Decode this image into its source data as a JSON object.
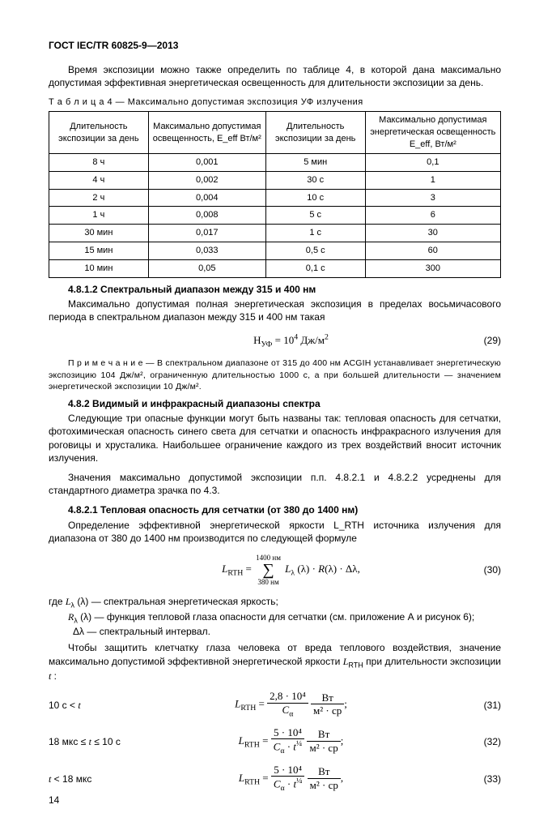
{
  "header": "ГОСТ IEC/TR 60825-9—2013",
  "intro": "Время экспозиции можно также определить по таблице 4, в которой дана максимально допустимая эффективная энергетическая освещенность для длительности экспозиции за день.",
  "table_caption": "Т а б л и ц а  4 — Максимально допустимая экспозиция УФ излучения",
  "table": {
    "headers": [
      "Длительность экспозиции за день",
      "Максимально допустимая освещенность, E_eff Вт/м²",
      "Длительность экспозиции за день",
      "Максимально допустимая энергетическая освещенность E_eff, Вт/м²"
    ],
    "rows": [
      [
        "8 ч",
        "0,001",
        "5 мин",
        "0,1"
      ],
      [
        "4 ч",
        "0,002",
        "30 с",
        "1"
      ],
      [
        "2 ч",
        "0,004",
        "10 с",
        "3"
      ],
      [
        "1 ч",
        "0,008",
        "5 с",
        "6"
      ],
      [
        "30 мин",
        "0,017",
        "1 с",
        "30"
      ],
      [
        "15 мин",
        "0,033",
        "0,5 с",
        "60"
      ],
      [
        "10 мин",
        "0,05",
        "0,1 с",
        "300"
      ]
    ],
    "col_widths": [
      "22%",
      "26%",
      "22%",
      "30%"
    ]
  },
  "sec4812_title": "4.8.1.2  Спектральный диапазон между 315 и 400 нм",
  "sec4812_body": "Максимально допустимая полная энергетическая экспозиция в пределах восьмичасового периода в спектральном диапазон между 315 и 400 нм такая",
  "eq29": {
    "lhs": "H_УФ =",
    "rhs": "10⁴ Дж/м²",
    "num": "(29)"
  },
  "note": "П р и м е ч а н и е  —  В спектральном диапазоне от 315 до 400 нм ACGIH устанавливает энергетическую экспозицию 104 Дж/м², ограниченную длительностью 1000 с, а при большей длительности — значением энергетической экспозиции 10 Дж/м².",
  "sec482_title": "4.8.2  Видимый и инфракрасный диапазоны спектра",
  "sec482_body1": "Следующие три опасные функции могут быть названы так: тепловая опасность для сетчатки, фотохимическая опасность синего света для сетчатки и опасность инфракрасного излучения для роговицы и хрусталика. Наибольшее ограничение каждого из трех воздействий вносит источник излучения.",
  "sec482_body2": "Значения максимально допустимой экспозиции п.п. 4.8.2.1 и 4.8.2.2 усреднены для стандартного диаметра зрачка по 4.3.",
  "sec4821_title": "4.8.2.1  Тепловая опасность для сетчатки (от 380 до 1400 нм)",
  "sec4821_body": "Определение эффективной энергетической яркости L_RTH источника излучения для диапазона от 380 до 1400 нм производится по следующей формуле",
  "eq30": {
    "lhs": "L_RTH =",
    "sum_top": "1400 нм",
    "sum_bot": "380 нм",
    "rhs": "L_λ (λ) · R(λ) · Δλ,",
    "num": "(30)"
  },
  "where_intro": "где",
  "where": [
    "L_λ (λ)  —  спектральная энергетическая яркость;",
    "R_λ (λ)  —  функция тепловой глаза опасности для сетчатки (см. приложение А и рисунок 6);",
    "Δλ  —  спектральный интервал."
  ],
  "protect": "Чтобы защитить клетчатку глаза человека от вреда теплового воздействия, значение максимально допустимой эффективной энергетической яркости L_RTH при длительности экспозиции t :",
  "eq31": {
    "cond": "10 с < t",
    "num_top": "2,8 · 10⁴",
    "den": "C_α",
    "unit_num": "Вт",
    "unit_den": "м² · ср",
    "num": "(31)"
  },
  "eq32": {
    "cond": "18 мкс ≤ t ≤ 10 с",
    "num_top": "5 · 10⁴",
    "den": "C_α · t^¼",
    "unit_num": "Вт",
    "unit_den": "м² · ср",
    "num": "(32)"
  },
  "eq33": {
    "cond": "t < 18 мкс",
    "num_top": "5 · 10⁴",
    "den": "C_α · t^¼",
    "unit_num": "Вт",
    "unit_den": "м² · ср",
    "num": "(33)"
  },
  "page_number": "14"
}
